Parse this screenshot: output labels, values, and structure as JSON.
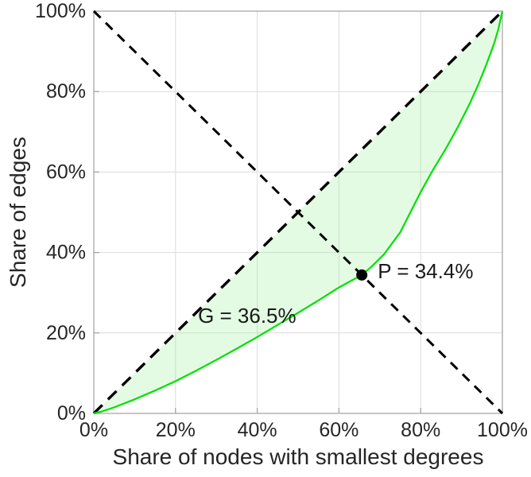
{
  "figure": {
    "background": "#ffffff"
  },
  "chart_data": {
    "type": "line",
    "title": "",
    "xlabel": "Share of nodes with smallest degrees",
    "ylabel": "Share of edges",
    "xlim": [
      0,
      100
    ],
    "ylim": [
      0,
      100
    ],
    "xticks": [
      0,
      20,
      40,
      60,
      80,
      100
    ],
    "yticks": [
      0,
      20,
      40,
      60,
      80,
      100
    ],
    "tick_format": "{v}%",
    "grid": true,
    "legend": "none",
    "colors": {
      "curve": "#00e100",
      "fill": "#90ee90",
      "dashed": "#000000",
      "grid": "#dcdcdc",
      "frame": "#a0a0a0",
      "text": "#262626"
    },
    "series": [
      {
        "name": "equality-diagonal",
        "type": "line",
        "style": "dashed",
        "color": "#000000",
        "width": 3.4,
        "dash": [
          15,
          10
        ],
        "points": [
          [
            0,
            0
          ],
          [
            100,
            100
          ]
        ]
      },
      {
        "name": "anti-diagonal",
        "type": "line",
        "style": "dashed",
        "color": "#000000",
        "width": 3.0,
        "dash": [
          12,
          9
        ],
        "points": [
          [
            0,
            100
          ],
          [
            100,
            0
          ]
        ]
      },
      {
        "name": "lorenz-curve",
        "type": "line",
        "style": "solid",
        "color": "#00e100",
        "width": 2.2,
        "points": [
          [
            0,
            0
          ],
          [
            2,
            0.5
          ],
          [
            5,
            1.5
          ],
          [
            10,
            3.5
          ],
          [
            15,
            5.7
          ],
          [
            20,
            8
          ],
          [
            25,
            10.6
          ],
          [
            30,
            13.3
          ],
          [
            35,
            16.1
          ],
          [
            40,
            19
          ],
          [
            45,
            22
          ],
          [
            50,
            25
          ],
          [
            55,
            28.1
          ],
          [
            60,
            31.3
          ],
          [
            65.6,
            34.4
          ],
          [
            68,
            36.5
          ],
          [
            71,
            39.5
          ],
          [
            75,
            45
          ],
          [
            78,
            51
          ],
          [
            80,
            55
          ],
          [
            83,
            60.5
          ],
          [
            86,
            65.5
          ],
          [
            89,
            71
          ],
          [
            92,
            77
          ],
          [
            94,
            81.5
          ],
          [
            96,
            86.5
          ],
          [
            98,
            92
          ],
          [
            99,
            95.5
          ],
          [
            100,
            100
          ]
        ]
      }
    ],
    "fill_between": {
      "upper": "equality-diagonal",
      "lower": "lorenz-curve",
      "opacity": 0.25
    },
    "marker_point": {
      "x": 65.6,
      "y": 34.4,
      "color": "#000000",
      "radius": 7,
      "label": "P = 34.4%"
    },
    "annotations": [
      {
        "id": "gini-label",
        "text": "G = 36.5%",
        "x": 25.5,
        "y": 22.5
      },
      {
        "id": "p-label",
        "text": "P = 34.4%",
        "x": 69.5,
        "y": 33.6
      }
    ]
  }
}
